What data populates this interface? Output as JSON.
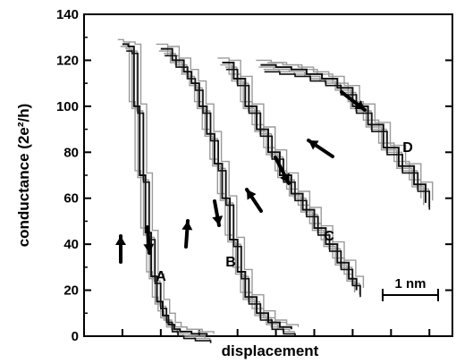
{
  "chart_data": {
    "type": "line",
    "title": "",
    "xlabel": "displacement",
    "ylabel": "conductance (2e²/h)",
    "ylim": [
      0,
      140
    ],
    "y_ticks": [
      0,
      20,
      40,
      60,
      80,
      100,
      120,
      140
    ],
    "x_ticks_labeled": false,
    "x_unit_nm": "1 nm",
    "scale_bar_label": "1 nm",
    "grid": false,
    "colors": {
      "dark_trace": "#111111",
      "light_trace": "#9a9a9a",
      "axis": "#000000"
    },
    "series": [
      {
        "name": "A",
        "x": [
          0.0,
          0.15,
          0.3,
          0.45,
          0.6,
          0.75,
          0.9,
          1.05,
          1.2,
          1.35,
          1.5,
          1.8,
          2.2
        ],
        "y": [
          127,
          126,
          100,
          70,
          45,
          26,
          15,
          9,
          5,
          3,
          2,
          1,
          0
        ]
      },
      {
        "name": "B",
        "x": [
          1.0,
          1.3,
          1.6,
          1.8,
          2.0,
          2.2,
          2.4,
          2.6,
          2.8,
          3.0,
          3.2,
          3.5,
          3.8,
          4.1,
          4.4
        ],
        "y": [
          125,
          120,
          115,
          110,
          100,
          88,
          75,
          60,
          42,
          28,
          17,
          10,
          6,
          4,
          3
        ]
      },
      {
        "name": "C",
        "x": [
          2.6,
          2.9,
          3.2,
          3.5,
          3.8,
          4.1,
          4.4,
          4.7,
          5.0,
          5.3,
          5.6,
          5.9,
          6.1
        ],
        "y": [
          119,
          112,
          100,
          90,
          80,
          70,
          62,
          55,
          47,
          40,
          32,
          25,
          20
        ]
      },
      {
        "name": "D",
        "x": [
          3.6,
          4.0,
          4.4,
          4.8,
          5.2,
          5.6,
          6.0,
          6.4,
          6.8,
          7.2,
          7.6,
          7.9
        ],
        "y": [
          118,
          117,
          116,
          114,
          112,
          108,
          100,
          92,
          82,
          74,
          66,
          58
        ]
      }
    ],
    "curve_labels": [
      "A",
      "B",
      "C",
      "D"
    ]
  }
}
